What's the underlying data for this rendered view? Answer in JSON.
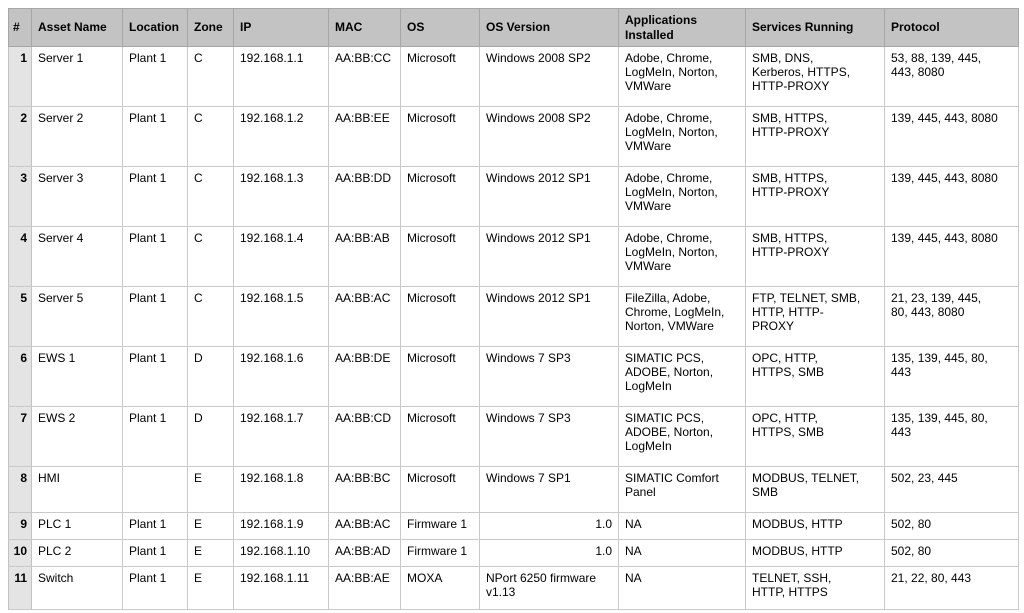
{
  "table": {
    "columns": [
      {
        "key": "num",
        "label": "#"
      },
      {
        "key": "asset-name",
        "label": "Asset Name"
      },
      {
        "key": "location",
        "label": "Location"
      },
      {
        "key": "zone",
        "label": "Zone"
      },
      {
        "key": "ip",
        "label": "IP"
      },
      {
        "key": "mac",
        "label": "MAC"
      },
      {
        "key": "os",
        "label": "OS"
      },
      {
        "key": "os-version",
        "label": "OS Version"
      },
      {
        "key": "applications-installed",
        "label": "Applications Installed"
      },
      {
        "key": "services-running",
        "label": "Services Running"
      },
      {
        "key": "protocol",
        "label": "Protocol"
      }
    ],
    "rows": [
      [
        "1",
        "Server 1",
        "Plant 1",
        "C",
        "192.168.1.1",
        "AA:BB:CC",
        "Microsoft",
        "Windows 2008 SP2",
        "Adobe, Chrome,\nLogMeIn, Norton,\nVMWare",
        "SMB, DNS,\nKerberos, HTTPS,\nHTTP-PROXY",
        "53, 88, 139, 445,\n443, 8080"
      ],
      [
        "2",
        "Server 2",
        "Plant 1",
        "C",
        "192.168.1.2",
        "AA:BB:EE",
        "Microsoft",
        "Windows 2008 SP2",
        "Adobe, Chrome,\nLogMeIn, Norton,\nVMWare",
        "SMB, HTTPS,\nHTTP-PROXY",
        "139, 445, 443, 8080"
      ],
      [
        "3",
        "Server 3",
        "Plant 1",
        "C",
        "192.168.1.3",
        "AA:BB:DD",
        "Microsoft",
        "Windows 2012 SP1",
        "Adobe, Chrome,\nLogMeIn, Norton,\nVMWare",
        "SMB, HTTPS,\nHTTP-PROXY",
        "139, 445, 443, 8080"
      ],
      [
        "4",
        "Server 4",
        "Plant 1",
        "C",
        "192.168.1.4",
        "AA:BB:AB",
        "Microsoft",
        "Windows 2012 SP1",
        "Adobe, Chrome,\nLogMeIn, Norton,\nVMWare",
        "SMB, HTTPS,\nHTTP-PROXY",
        "139, 445, 443, 8080"
      ],
      [
        "5",
        "Server 5",
        "Plant 1",
        "C",
        "192.168.1.5",
        "AA:BB:AC",
        "Microsoft",
        "Windows 2012 SP1",
        "FileZilla, Adobe,\nChrome, LogMeIn,\nNorton, VMWare",
        "FTP, TELNET, SMB,\nHTTP, HTTP-\nPROXY",
        "21, 23, 139, 445,\n80, 443, 8080"
      ],
      [
        "6",
        "EWS 1",
        "Plant 1",
        "D",
        "192.168.1.6",
        "AA:BB:DE",
        "Microsoft",
        "Windows 7 SP3",
        "SIMATIC PCS,\nADOBE, Norton,\nLogMeIn",
        "OPC, HTTP,\nHTTPS, SMB",
        "135, 139, 445, 80,\n443"
      ],
      [
        "7",
        "EWS 2",
        "Plant 1",
        "D",
        "192.168.1.7",
        "AA:BB:CD",
        "Microsoft",
        "Windows 7 SP3",
        "SIMATIC PCS,\nADOBE, Norton,\nLogMeIn",
        "OPC, HTTP,\nHTTPS, SMB",
        "135, 139, 445, 80,\n443"
      ],
      [
        "8",
        "HMI",
        "",
        "E",
        "192.168.1.8",
        "AA:BB:BC",
        "Microsoft",
        "Windows 7 SP1",
        "SIMATIC Comfort\nPanel",
        "MODBUS, TELNET,\nSMB",
        "502, 23, 445"
      ],
      [
        "9",
        "PLC 1",
        "Plant 1",
        "E",
        "192.168.1.9",
        "AA:BB:AC",
        "Firmware 1",
        "1.0",
        "NA",
        "MODBUS, HTTP",
        "502, 80"
      ],
      [
        "10",
        "PLC 2",
        "Plant 1",
        "E",
        "192.168.1.10",
        "AA:BB:AD",
        "Firmware 1",
        "1.0",
        "NA",
        "MODBUS, HTTP",
        "502, 80"
      ],
      [
        "11",
        "Switch",
        "Plant 1",
        "E",
        "192.168.1.11",
        "AA:BB:AE",
        "MOXA",
        "NPort 6250 firmware\nv1.13",
        "NA",
        "TELNET, SSH,\nHTTP, HTTPS",
        "21, 22, 80, 443"
      ]
    ]
  }
}
